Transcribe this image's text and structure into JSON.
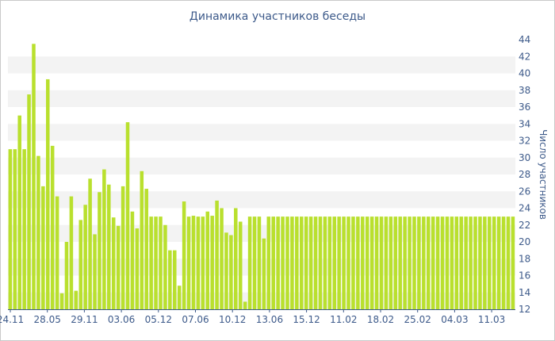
{
  "chart_data": {
    "type": "bar",
    "title": "Динамика участников беседы",
    "ylabel": "Число участников",
    "xlabel": "",
    "ylim": [
      12,
      44
    ],
    "yticks": [
      12,
      14,
      16,
      18,
      20,
      22,
      24,
      26,
      28,
      30,
      32,
      34,
      36,
      38,
      40,
      42,
      44
    ],
    "x_tick_labels": [
      "24.11",
      "28.05",
      "29.11",
      "03.06",
      "05.12",
      "07.06",
      "10.12",
      "13.06",
      "15.12",
      "11.02",
      "18.02",
      "25.02",
      "04.03",
      "11.03"
    ],
    "values": [
      31,
      31,
      35,
      31,
      37.5,
      43.5,
      30.2,
      26.6,
      39.3,
      31.4,
      25.4,
      13.9,
      20,
      25.4,
      14.2,
      22.6,
      24.4,
      27.5,
      20.9,
      25.9,
      28.6,
      26.8,
      22.9,
      21.9,
      26.6,
      34.2,
      23.6,
      21.6,
      28.4,
      26.3,
      23,
      23,
      23,
      22,
      19,
      19,
      14.8,
      24.8,
      23,
      23.1,
      23,
      23,
      23.6,
      23.1,
      24.9,
      24,
      21.1,
      20.8,
      24,
      22.4,
      12.9,
      23,
      23,
      23,
      20.4,
      23,
      23,
      23,
      23,
      23,
      23,
      23,
      23,
      23,
      23,
      23,
      23,
      23,
      23,
      23,
      23,
      23,
      23,
      23,
      23,
      23,
      23,
      23,
      23,
      23,
      23,
      23,
      23,
      23,
      23,
      23,
      23,
      23,
      23,
      23,
      23,
      23,
      23,
      23,
      23,
      23,
      23,
      23,
      23,
      23,
      23,
      23,
      23,
      23,
      23,
      23,
      23,
      23
    ],
    "bar_color": "#b9e02e",
    "grid_band_color": "#f3f3f3",
    "axis_text_color": "#3d5a8a"
  }
}
